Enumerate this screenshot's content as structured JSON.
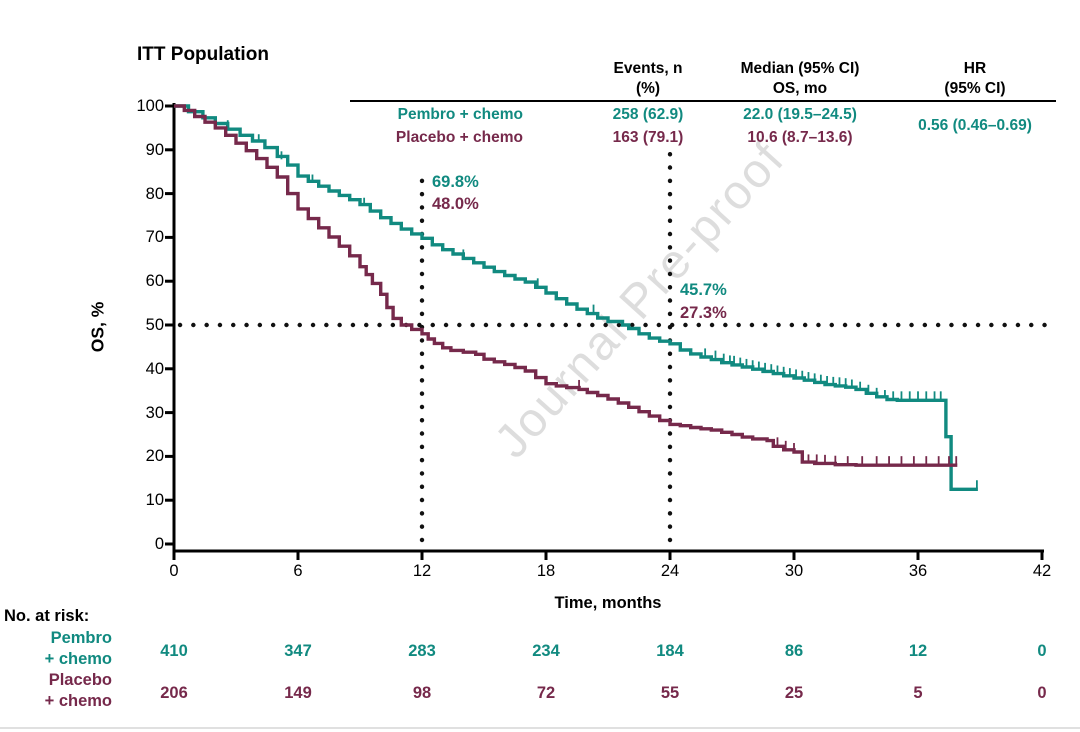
{
  "title": "ITT Population",
  "watermark": "Journal Pre-proof",
  "colors": {
    "pembro": "#118A80",
    "placebo": "#76294B",
    "axis": "#000000",
    "dotted": "#111111",
    "watermark_gray": "#c3c3c3"
  },
  "summary_table": {
    "columns": [
      {
        "line1": "Events, n",
        "line2": "(%)"
      },
      {
        "line1": "Median (95% CI)",
        "line2": "OS, mo"
      },
      {
        "line1": "HR",
        "line2": "(95% CI)"
      }
    ],
    "rows": [
      {
        "group": "Pembro + chemo",
        "events": "258 (62.9)",
        "median": "22.0 (19.5–24.5)"
      },
      {
        "group": "Placebo + chemo",
        "events": "163 (79.1)",
        "median": "10.6 (8.7–13.6)"
      }
    ],
    "hr": "0.56 (0.46–0.69)"
  },
  "annotations": {
    "t12_pembro": "69.8%",
    "t12_placebo": "48.0%",
    "t24_pembro": "45.7%",
    "t24_placebo": "27.3%"
  },
  "risk_table": {
    "label": "No. at risk:",
    "rows": [
      {
        "name": "Pembro\n+ chemo",
        "color": "#118A80",
        "counts": [
          410,
          347,
          283,
          234,
          184,
          86,
          12,
          0
        ]
      },
      {
        "name": "Placebo\n+ chemo",
        "color": "#76294B",
        "counts": [
          206,
          149,
          98,
          72,
          55,
          25,
          5,
          0
        ]
      }
    ]
  },
  "chart_data": {
    "type": "line",
    "subtype": "kaplan-meier-step",
    "title": "ITT Population",
    "xlabel": "Time, months",
    "ylabel": "OS, %",
    "xlim": [
      0,
      42
    ],
    "ylim": [
      0,
      100
    ],
    "xticks": [
      0,
      6,
      12,
      18,
      24,
      30,
      36,
      42
    ],
    "yticks": [
      0,
      10,
      20,
      30,
      40,
      50,
      60,
      70,
      80,
      90,
      100
    ],
    "grid": false,
    "legend_position": "top-center-table",
    "reference_lines": {
      "horizontal_y": 50,
      "vertical_x": [
        12,
        24
      ]
    },
    "landmark_values": {
      "12mo": {
        "pembro": 69.8,
        "placebo": 48.0
      },
      "24mo": {
        "pembro": 45.7,
        "placebo": 27.3
      }
    },
    "series": [
      {
        "id": "pembro",
        "name": "Pembro + chemo",
        "color": "#118A80",
        "points": [
          [
            0,
            100
          ],
          [
            0.7,
            98.7
          ],
          [
            1.4,
            97.3
          ],
          [
            2,
            96
          ],
          [
            2.6,
            94.7
          ],
          [
            3.2,
            93.3
          ],
          [
            3.8,
            92
          ],
          [
            4.4,
            90.5
          ],
          [
            5,
            88.5
          ],
          [
            5.5,
            86.5
          ],
          [
            6,
            84
          ],
          [
            6.5,
            82.8
          ],
          [
            7,
            81.7
          ],
          [
            7.5,
            80.6
          ],
          [
            8,
            79.6
          ],
          [
            8.5,
            78.6
          ],
          [
            9,
            77.5
          ],
          [
            9.5,
            76
          ],
          [
            10,
            74.5
          ],
          [
            10.5,
            73.2
          ],
          [
            11,
            71.9
          ],
          [
            11.5,
            70.8
          ],
          [
            12,
            69.8
          ],
          [
            12.5,
            68.3
          ],
          [
            13,
            67.2
          ],
          [
            13.5,
            66.2
          ],
          [
            14,
            65.2
          ],
          [
            14.5,
            64.2
          ],
          [
            15,
            63.2
          ],
          [
            15.5,
            62.2
          ],
          [
            16,
            61.3
          ],
          [
            16.5,
            60.5
          ],
          [
            17,
            59.8
          ],
          [
            17.5,
            58.6
          ],
          [
            18,
            57.3
          ],
          [
            18.5,
            56
          ],
          [
            19,
            54.8
          ],
          [
            19.5,
            53.6
          ],
          [
            20,
            52.6
          ],
          [
            20.5,
            51.6
          ],
          [
            21,
            50.8
          ],
          [
            21.7,
            50
          ],
          [
            22,
            49.2
          ],
          [
            22.5,
            48
          ],
          [
            23,
            47
          ],
          [
            23.5,
            46.3
          ],
          [
            24,
            45.7
          ],
          [
            24.5,
            44.3
          ],
          [
            25,
            43.4
          ],
          [
            25.5,
            42.7
          ],
          [
            26,
            42.1
          ],
          [
            26.5,
            41.4
          ],
          [
            27,
            40.9
          ],
          [
            27.5,
            40.4
          ],
          [
            28,
            39.9
          ],
          [
            28.5,
            39.4
          ],
          [
            29,
            38.9
          ],
          [
            29.5,
            38.4
          ],
          [
            30,
            37.9
          ],
          [
            30.5,
            37.4
          ],
          [
            31,
            36.9
          ],
          [
            31.5,
            36.4
          ],
          [
            32,
            36.1
          ],
          [
            32.5,
            35.8
          ],
          [
            33,
            35.3
          ],
          [
            33.5,
            34.4
          ],
          [
            34,
            33.6
          ],
          [
            34.5,
            33
          ],
          [
            35,
            32.8
          ],
          [
            37.3,
            32.8
          ],
          [
            37.35,
            24.5
          ],
          [
            37.55,
            24.5
          ],
          [
            37.6,
            12.5
          ],
          [
            38.9,
            12.5
          ]
        ],
        "censor_marks": [
          [
            2.6,
            94.7
          ],
          [
            4.1,
            91.5
          ],
          [
            5.2,
            87.6
          ],
          [
            6.7,
            82.3
          ],
          [
            9.2,
            77
          ],
          [
            14,
            65.2
          ],
          [
            17.6,
            58.6
          ],
          [
            20.3,
            52.6
          ],
          [
            25.7,
            42.6
          ],
          [
            26.2,
            42.1
          ],
          [
            26.6,
            41.4
          ],
          [
            26.9,
            41
          ],
          [
            27.1,
            40.9
          ],
          [
            27.4,
            40.5
          ],
          [
            27.7,
            40.2
          ],
          [
            28,
            39.9
          ],
          [
            28.3,
            39.6
          ],
          [
            28.6,
            39.3
          ],
          [
            28.9,
            39
          ],
          [
            29.2,
            38.7
          ],
          [
            29.5,
            38.4
          ],
          [
            29.8,
            38.1
          ],
          [
            30.1,
            37.8
          ],
          [
            30.4,
            37.5
          ],
          [
            30.7,
            37.2
          ],
          [
            31,
            36.9
          ],
          [
            31.3,
            36.6
          ],
          [
            31.6,
            36.3
          ],
          [
            31.9,
            36.1
          ],
          [
            32.2,
            36
          ],
          [
            32.5,
            35.8
          ],
          [
            32.8,
            35.5
          ],
          [
            33.2,
            35
          ],
          [
            33.6,
            34.3
          ],
          [
            34,
            33.6
          ],
          [
            34.4,
            33.1
          ],
          [
            34.8,
            32.8
          ],
          [
            35.2,
            32.8
          ],
          [
            35.6,
            32.8
          ],
          [
            36,
            32.8
          ],
          [
            36.4,
            32.8
          ],
          [
            36.8,
            32.8
          ],
          [
            37.1,
            32.8
          ],
          [
            38.85,
            12.5
          ]
        ]
      },
      {
        "id": "placebo",
        "name": "Placebo + chemo",
        "color": "#76294B",
        "points": [
          [
            0,
            100
          ],
          [
            0.5,
            99
          ],
          [
            1,
            97.6
          ],
          [
            1.5,
            96.3
          ],
          [
            2,
            95
          ],
          [
            2.5,
            93.3
          ],
          [
            3,
            91.5
          ],
          [
            3.5,
            89.8
          ],
          [
            4,
            88
          ],
          [
            4.5,
            86
          ],
          [
            5,
            83.8
          ],
          [
            5.5,
            80
          ],
          [
            6,
            76.5
          ],
          [
            6.5,
            74.3
          ],
          [
            7,
            72.2
          ],
          [
            7.5,
            70.1
          ],
          [
            8,
            68
          ],
          [
            8.5,
            65.8
          ],
          [
            9,
            63.3
          ],
          [
            9.3,
            61.5
          ],
          [
            9.6,
            59.5
          ],
          [
            10,
            57
          ],
          [
            10.3,
            54
          ],
          [
            10.6,
            51.5
          ],
          [
            11,
            50
          ],
          [
            11.5,
            49
          ],
          [
            12,
            48
          ],
          [
            12.3,
            46.8
          ],
          [
            12.6,
            45.8
          ],
          [
            13,
            44.8
          ],
          [
            13.4,
            44.2
          ],
          [
            14,
            43.8
          ],
          [
            14.6,
            43.3
          ],
          [
            15,
            42.2
          ],
          [
            15.5,
            41.6
          ],
          [
            16,
            41
          ],
          [
            16.5,
            40.3
          ],
          [
            17,
            39.5
          ],
          [
            17.5,
            38
          ],
          [
            18,
            36.6
          ],
          [
            18.5,
            36.1
          ],
          [
            19,
            35.7
          ],
          [
            19.6,
            35.3
          ],
          [
            20,
            34.6
          ],
          [
            20.5,
            33.9
          ],
          [
            21,
            33.1
          ],
          [
            21.5,
            32.2
          ],
          [
            22,
            31.2
          ],
          [
            22.5,
            30.2
          ],
          [
            23,
            29.2
          ],
          [
            23.5,
            28.2
          ],
          [
            24,
            27.3
          ],
          [
            24.5,
            27
          ],
          [
            25,
            26.6
          ],
          [
            25.5,
            26.3
          ],
          [
            26,
            26
          ],
          [
            26.5,
            25.5
          ],
          [
            27,
            25
          ],
          [
            27.5,
            24.4
          ],
          [
            28,
            24
          ],
          [
            28.7,
            23.6
          ],
          [
            29,
            22.3
          ],
          [
            29.5,
            21.5
          ],
          [
            30,
            21
          ],
          [
            30.4,
            18.7
          ],
          [
            31,
            18.4
          ],
          [
            32,
            18.1
          ],
          [
            33,
            18
          ],
          [
            37.9,
            18
          ]
        ],
        "censor_marks": [
          [
            10.3,
            54
          ],
          [
            19.6,
            35.4
          ],
          [
            29.2,
            22.3
          ],
          [
            29.6,
            21.5
          ],
          [
            30,
            21
          ],
          [
            30.7,
            18.4
          ],
          [
            31.1,
            18.4
          ],
          [
            31.5,
            18.3
          ],
          [
            32,
            18.1
          ],
          [
            32.6,
            18
          ],
          [
            33.3,
            18
          ],
          [
            34,
            18
          ],
          [
            34.6,
            18
          ],
          [
            35.2,
            18
          ],
          [
            35.8,
            18
          ],
          [
            36.4,
            18
          ],
          [
            37,
            18
          ],
          [
            37.5,
            18
          ],
          [
            37.85,
            18
          ]
        ]
      }
    ]
  }
}
